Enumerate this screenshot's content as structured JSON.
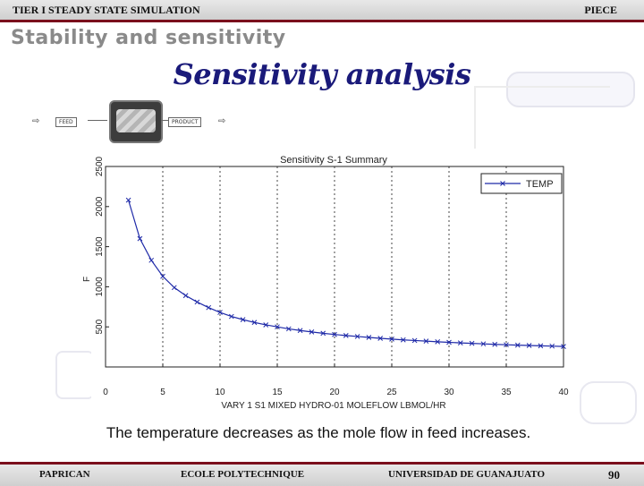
{
  "header": {
    "left": "TIER I   STEADY STATE SIMULATION",
    "right": "PIECE"
  },
  "section_title": "Stability and sensitivity",
  "slide_title": "Sensitivity analysis",
  "flowsheet": {
    "feed_label": "FEED",
    "product_label": "PRODUCT"
  },
  "caption": "The temperature decreases as the mole flow  in feed increases.",
  "footer": {
    "left": "PAPRICAN",
    "center_left": "ECOLE POLYTECHNIQUE",
    "center_right": "UNIVERSIDAD DE GUANAJUATO",
    "page": "90"
  },
  "chart_data": {
    "type": "line",
    "title": "Sensitivity S-1 Summary",
    "xlabel": "VARY 1 S1 MIXED HYDRO-01 MOLEFLOW LBMOL/HR",
    "ylabel": "F",
    "xlim": [
      0,
      40
    ],
    "ylim": [
      0,
      2500
    ],
    "xticks": [
      0,
      5,
      10,
      15,
      20,
      25,
      30,
      35,
      40
    ],
    "yticks": [
      500,
      1000,
      1500,
      2000,
      2500
    ],
    "grid": "vertical dotted lines",
    "legend_position": "top-right",
    "series": [
      {
        "name": "TEMP",
        "color": "#1f2aa8",
        "marker": "x",
        "x": [
          2,
          3,
          4,
          5,
          6,
          7,
          8,
          9,
          10,
          11,
          12,
          13,
          14,
          15,
          16,
          17,
          18,
          19,
          20,
          21,
          22,
          23,
          24,
          25,
          26,
          27,
          28,
          29,
          30,
          31,
          32,
          33,
          34,
          35,
          36,
          37,
          38,
          39,
          40
        ],
        "y": [
          2080,
          1600,
          1330,
          1130,
          990,
          890,
          810,
          740,
          680,
          630,
          590,
          555,
          525,
          500,
          475,
          455,
          437,
          420,
          405,
          392,
          380,
          368,
          357,
          347,
          338,
          330,
          322,
          314,
          307,
          300,
          294,
          288,
          282,
          277,
          272,
          268,
          264,
          260,
          255
        ]
      }
    ]
  }
}
